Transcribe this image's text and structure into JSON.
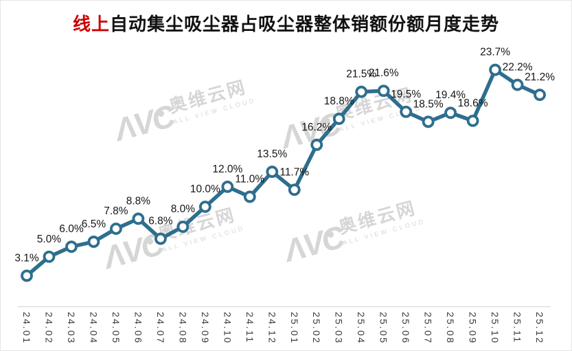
{
  "title": {
    "highlight": "线上",
    "rest": "自动集尘吸尘器占吸尘器整体销额份额月度走势",
    "full": "线上自动集尘吸尘器占吸尘器整体销额份额月度走势"
  },
  "watermark": {
    "logo": "AVC",
    "brand_cn": "奥维云网",
    "brand_en": "ALL VIEW CLOUD"
  },
  "colors": {
    "line": "#2e6e8e",
    "marker_fill": "#ffffff",
    "title_highlight": "#cc0000",
    "title_text": "#111111",
    "data_label_text": "#141414",
    "axis_label_text": "#3a3a3a",
    "axis_line": "#d9d9d9",
    "watermark": "#d6d6d6",
    "background": "#ffffff"
  },
  "chart_data": {
    "type": "line",
    "title": "线上自动集尘吸尘器占吸尘器整体销额份额月度走势",
    "categories": [
      "24.01",
      "24.02",
      "24.03",
      "24.04",
      "24.05",
      "24.06",
      "24.07",
      "24.08",
      "24.09",
      "24.10",
      "24.11",
      "24.12",
      "25.01",
      "25.02",
      "25.03",
      "25.04",
      "25.05",
      "25.06",
      "25.07",
      "25.08",
      "25.09",
      "25.10",
      "25.11",
      "25.12"
    ],
    "values": [
      3.1,
      5.0,
      6.0,
      6.5,
      7.8,
      8.8,
      6.8,
      8.0,
      10.0,
      12.0,
      11.0,
      13.5,
      11.7,
      16.2,
      18.8,
      21.5,
      21.6,
      19.5,
      18.5,
      19.4,
      18.6,
      23.7,
      22.2,
      21.2
    ],
    "point_labels": [
      "3.1%",
      "5.0%",
      "6.0%",
      "6.5%",
      "7.8%",
      "8.8%",
      "6.8%",
      "8.0%",
      "10.0%",
      "12.0%",
      "11.0%",
      "13.5%",
      "11.7%",
      "16.2%",
      "18.8%",
      "21.5%",
      "21.6%",
      "19.5%",
      "18.5%",
      "19.4%",
      "18.6%",
      "23.7%",
      "22.2%",
      "21.2%"
    ],
    "unit": "%",
    "ylim": [
      0,
      27
    ],
    "xlabel": "",
    "ylabel": "",
    "grid": false,
    "legend": "none",
    "marker": "circle"
  }
}
